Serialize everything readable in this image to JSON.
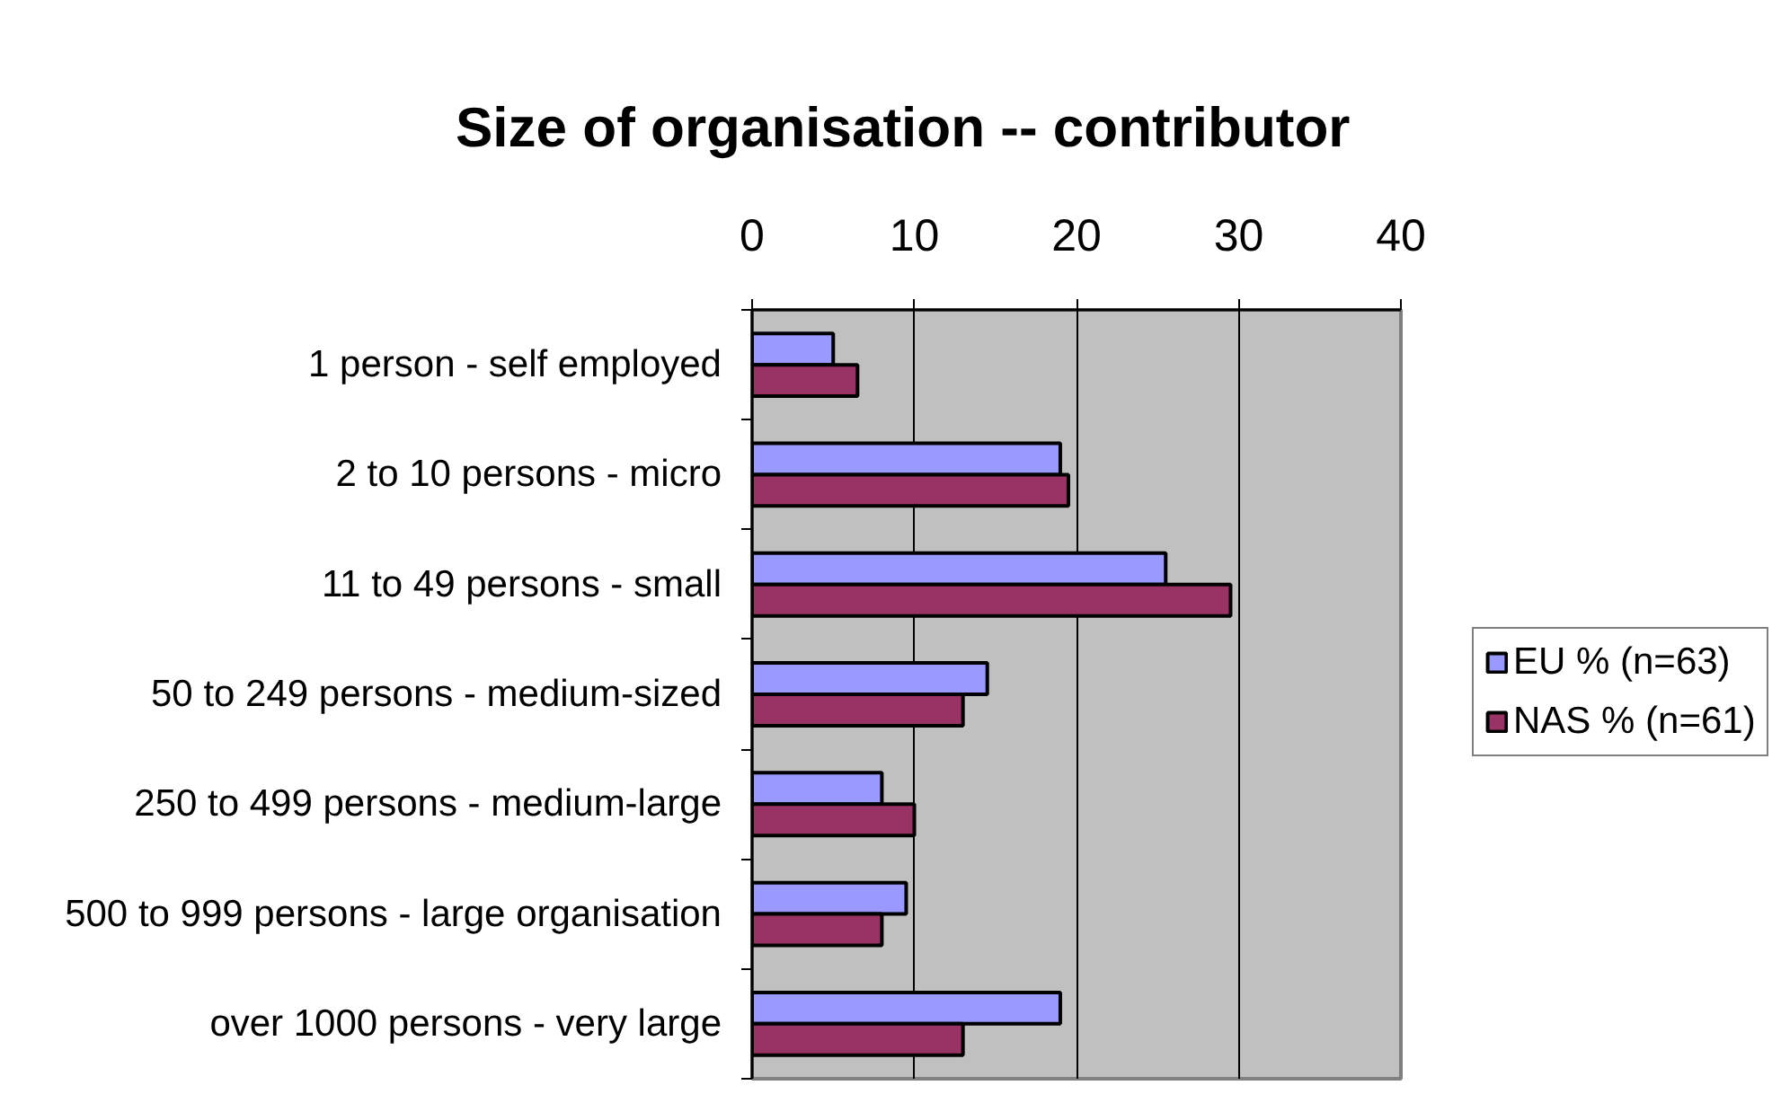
{
  "chart_data": {
    "type": "bar",
    "orientation": "horizontal",
    "title": "Size of organisation -- contributor",
    "categories": [
      "1 person - self employed",
      "2 to 10 persons - micro",
      "11 to 49 persons - small",
      "50 to 249 persons - medium-sized",
      "250 to 499 persons - medium-large",
      "500 to 999 persons - large organisation",
      "over 1000 persons - very large"
    ],
    "series": [
      {
        "name": "EU % (n=63)",
        "color": "#9999ff",
        "values": [
          5,
          19,
          25.5,
          14.5,
          8,
          9.5,
          19
        ]
      },
      {
        "name": "NAS % (n=61)",
        "color": "#993366",
        "values": [
          6.5,
          19.5,
          29.5,
          13,
          10,
          8,
          13
        ]
      }
    ],
    "xlim": [
      0,
      40
    ],
    "xticks": [
      0,
      10,
      20,
      30,
      40
    ],
    "grid": "x",
    "legend": "right"
  }
}
